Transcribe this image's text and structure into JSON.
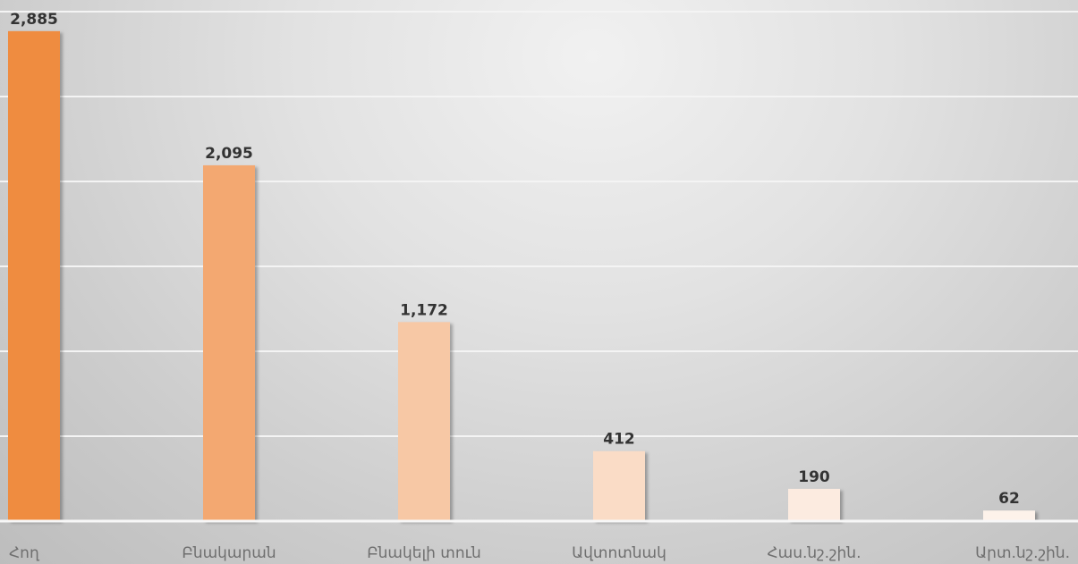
{
  "chart_data": {
    "type": "bar",
    "categories": [
      "Հող",
      "Բնակարան",
      "Բնակելի տուն",
      "Ավտոտնակ",
      "Հաս.նշ.շին.",
      "Արտ.նշ.շին."
    ],
    "values": [
      2885,
      2095,
      1172,
      412,
      190,
      62
    ],
    "value_labels": [
      "2,885",
      "2,095",
      "1,172",
      "412",
      "190",
      "62"
    ],
    "title": "",
    "xlabel": "",
    "ylabel": "",
    "ylim": [
      0,
      3000
    ],
    "grid": true,
    "legend": "none",
    "colors": [
      "#ef8c3f",
      "#f3a871",
      "#f7c8a5",
      "#fadcc6",
      "#fcebe0",
      "#fdf2ea"
    ]
  }
}
